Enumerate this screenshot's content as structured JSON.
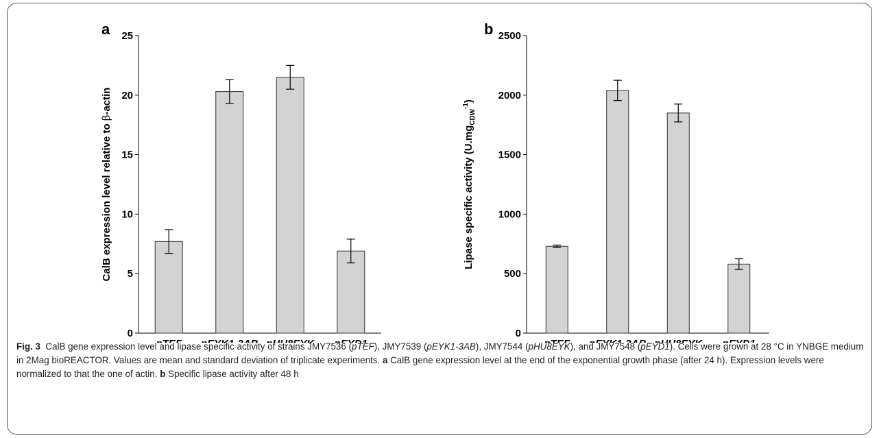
{
  "colors": {
    "bar_fill": "#d3d3d3",
    "bar_stroke": "#333333",
    "axis": "#000000"
  },
  "chart_data": [
    {
      "type": "bar",
      "panel": "a",
      "categories": [
        "pTEF",
        "pEYK1-3AB",
        "pHU8EYK",
        "pEYD1"
      ],
      "values": [
        7.7,
        20.3,
        21.5,
        6.9
      ],
      "errors": [
        1.0,
        1.0,
        1.0,
        1.0
      ],
      "ylabel_parts": [
        "CalB expression  level relative to ",
        "β",
        "-actin"
      ],
      "ylim": [
        0,
        25
      ],
      "yticks": [
        0,
        5,
        10,
        15,
        20,
        25
      ],
      "grid": false
    },
    {
      "type": "bar",
      "panel": "b",
      "categories": [
        "pTEF",
        "pEYK1-3AB",
        "pHU8EYK",
        "pEYD1"
      ],
      "values": [
        730,
        2040,
        1850,
        580
      ],
      "errors": [
        10,
        85,
        75,
        45
      ],
      "ylabel_parts": [
        "Lipase specific activity (U.mg",
        "CDW",
        "-1",
        ")"
      ],
      "ylim": [
        0,
        2500
      ],
      "yticks": [
        0,
        500,
        1000,
        1500,
        2000,
        2500
      ],
      "grid": false
    }
  ],
  "caption": {
    "fig_label": "Fig. 3",
    "s1": "CalB gene expression level and lipase specific activity of strains JMY7536 (",
    "i1": "pTEF",
    "s2": "), JMY7539 (",
    "i2": "pEYK1-3AB",
    "s3": "), JMY7544 (",
    "i3": "pHU8EYK",
    "s4": "), and JMY7548 (",
    "i4": "pEYD1",
    "s5": "). Cells were grown at 28 °C in YNBGE medium in 2Mag bioREACTOR. Values are mean and standard deviation of triplicate experiments.",
    "b1": "a",
    "s6": "CalB gene expression level at the end of the exponential growth phase (after 24 h). Expression levels were normalized to that the one of actin.",
    "b2": "b",
    "s7": "Specific lipase activity after 48 h"
  }
}
